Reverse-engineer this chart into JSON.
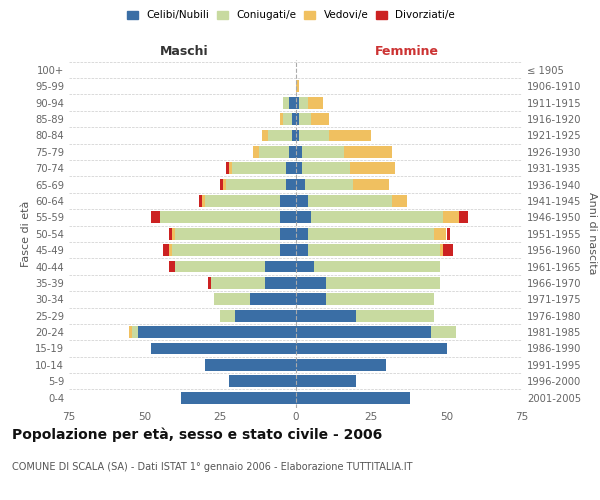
{
  "age_groups": [
    "0-4",
    "5-9",
    "10-14",
    "15-19",
    "20-24",
    "25-29",
    "30-34",
    "35-39",
    "40-44",
    "45-49",
    "50-54",
    "55-59",
    "60-64",
    "65-69",
    "70-74",
    "75-79",
    "80-84",
    "85-89",
    "90-94",
    "95-99",
    "100+"
  ],
  "birth_years": [
    "2001-2005",
    "1996-2000",
    "1991-1995",
    "1986-1990",
    "1981-1985",
    "1976-1980",
    "1971-1975",
    "1966-1970",
    "1961-1965",
    "1956-1960",
    "1951-1955",
    "1946-1950",
    "1941-1945",
    "1936-1940",
    "1931-1935",
    "1926-1930",
    "1921-1925",
    "1916-1920",
    "1911-1915",
    "1906-1910",
    "≤ 1905"
  ],
  "maschi": {
    "celibi": [
      38,
      22,
      30,
      48,
      52,
      20,
      15,
      10,
      10,
      5,
      5,
      5,
      5,
      3,
      3,
      2,
      1,
      1,
      2,
      0,
      0
    ],
    "coniugati": [
      0,
      0,
      0,
      0,
      2,
      5,
      12,
      18,
      30,
      36,
      35,
      40,
      25,
      20,
      18,
      10,
      8,
      3,
      2,
      0,
      0
    ],
    "vedovi": [
      0,
      0,
      0,
      0,
      1,
      0,
      0,
      0,
      0,
      1,
      1,
      0,
      1,
      1,
      1,
      2,
      2,
      1,
      0,
      0,
      0
    ],
    "divorziati": [
      0,
      0,
      0,
      0,
      0,
      0,
      0,
      1,
      2,
      2,
      1,
      3,
      1,
      1,
      1,
      0,
      0,
      0,
      0,
      0,
      0
    ]
  },
  "femmine": {
    "nubili": [
      38,
      20,
      30,
      50,
      45,
      20,
      10,
      10,
      6,
      4,
      4,
      5,
      4,
      3,
      2,
      2,
      1,
      1,
      1,
      0,
      0
    ],
    "coniugate": [
      0,
      0,
      0,
      0,
      8,
      26,
      36,
      38,
      42,
      44,
      42,
      44,
      28,
      16,
      16,
      14,
      10,
      4,
      3,
      0,
      0
    ],
    "vedove": [
      0,
      0,
      0,
      0,
      0,
      0,
      0,
      0,
      0,
      1,
      4,
      5,
      5,
      12,
      15,
      16,
      14,
      6,
      5,
      1,
      0
    ],
    "divorziate": [
      0,
      0,
      0,
      0,
      0,
      0,
      0,
      0,
      0,
      3,
      1,
      3,
      0,
      0,
      0,
      0,
      0,
      0,
      0,
      0,
      0
    ]
  },
  "colors": {
    "celibi": "#3a6ea5",
    "coniugati": "#c8daa0",
    "vedovi": "#f0c060",
    "divorziati": "#cc2222"
  },
  "xlim": 75,
  "title": "Popolazione per età, sesso e stato civile - 2006",
  "subtitle": "COMUNE DI SCALA (SA) - Dati ISTAT 1° gennaio 2006 - Elaborazione TUTTITALIA.IT",
  "ylabel_left": "Fasce di età",
  "ylabel_right": "Anni di nascita",
  "xlabel_left": "Maschi",
  "xlabel_right": "Femmine",
  "background_color": "#ffffff",
  "grid_color": "#cccccc"
}
